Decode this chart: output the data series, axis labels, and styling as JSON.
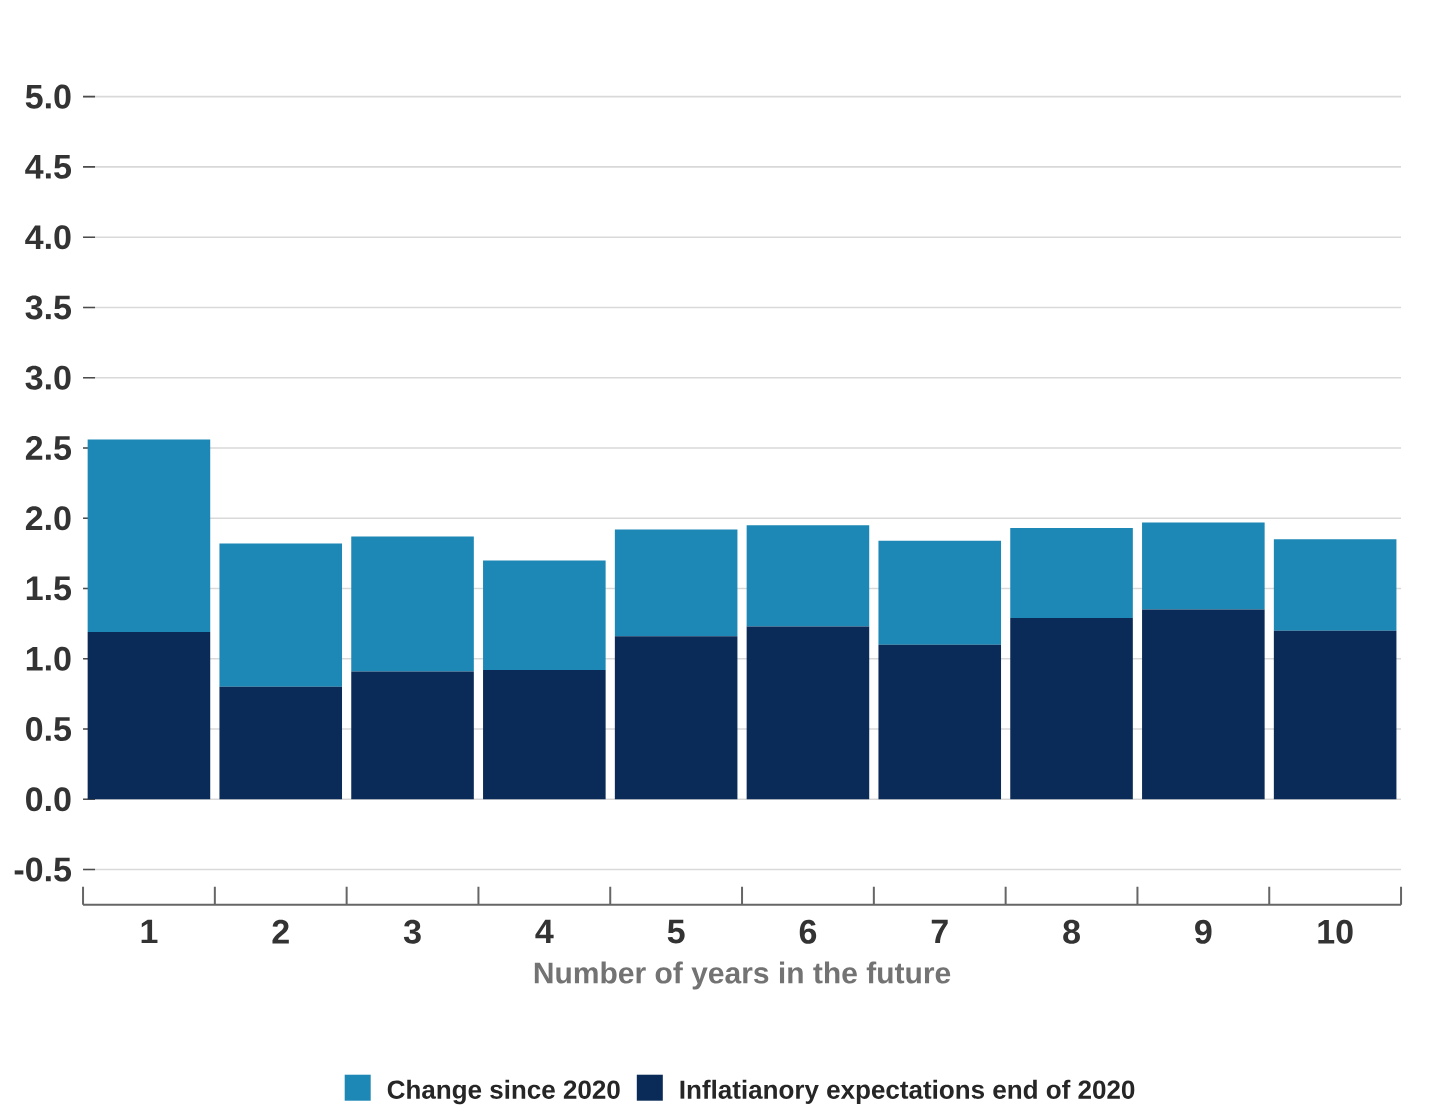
{
  "chart_data": {
    "type": "bar",
    "stacked": true,
    "xlabel": "Number of years in the future",
    "categories": [
      "1",
      "2",
      "3",
      "4",
      "5",
      "6",
      "7",
      "8",
      "9",
      "10"
    ],
    "series": [
      {
        "name": "Inflatianory expectations end of 2020",
        "color": "#0a2b57",
        "values": [
          1.19,
          0.8,
          0.91,
          0.92,
          1.16,
          1.23,
          1.1,
          1.29,
          1.35,
          1.2
        ]
      },
      {
        "name": "Change since 2020",
        "color": "#1d87b5",
        "values": [
          1.37,
          1.02,
          0.96,
          0.78,
          0.76,
          0.72,
          0.74,
          0.64,
          0.62,
          0.65
        ]
      }
    ],
    "ylim": [
      -0.75,
      5.0
    ],
    "yticks": [
      {
        "value": -0.5,
        "label": "-0.5"
      },
      {
        "value": 0,
        "label": "0.0"
      },
      {
        "value": 0.5,
        "label": "0.5"
      },
      {
        "value": 1,
        "label": "1.0"
      },
      {
        "value": 1.5,
        "label": "1.5"
      },
      {
        "value": 2,
        "label": "2.0"
      },
      {
        "value": 2.5,
        "label": "2.5"
      },
      {
        "value": 3,
        "label": "3.0"
      },
      {
        "value": 3.5,
        "label": "3.5"
      },
      {
        "value": 4,
        "label": "4.0"
      },
      {
        "value": 4.5,
        "label": "4.5"
      },
      {
        "value": 5,
        "label": "5.0"
      }
    ],
    "grid": "y",
    "legend": "bottom"
  }
}
